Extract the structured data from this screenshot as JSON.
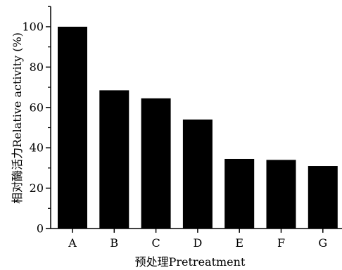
{
  "chart_data": {
    "type": "bar",
    "categories": [
      "A",
      "B",
      "C",
      "D",
      "E",
      "F",
      "G"
    ],
    "values": [
      100,
      68.5,
      64.5,
      54,
      34.5,
      34,
      31
    ],
    "xlabel": "预处理Pretreatment",
    "ylabel": "相对酶活力Relative activity (%)",
    "ylim": [
      0,
      110
    ],
    "yticks": [
      0,
      20,
      40,
      60,
      80,
      100
    ],
    "bar_color": "#000000",
    "grid": false
  }
}
